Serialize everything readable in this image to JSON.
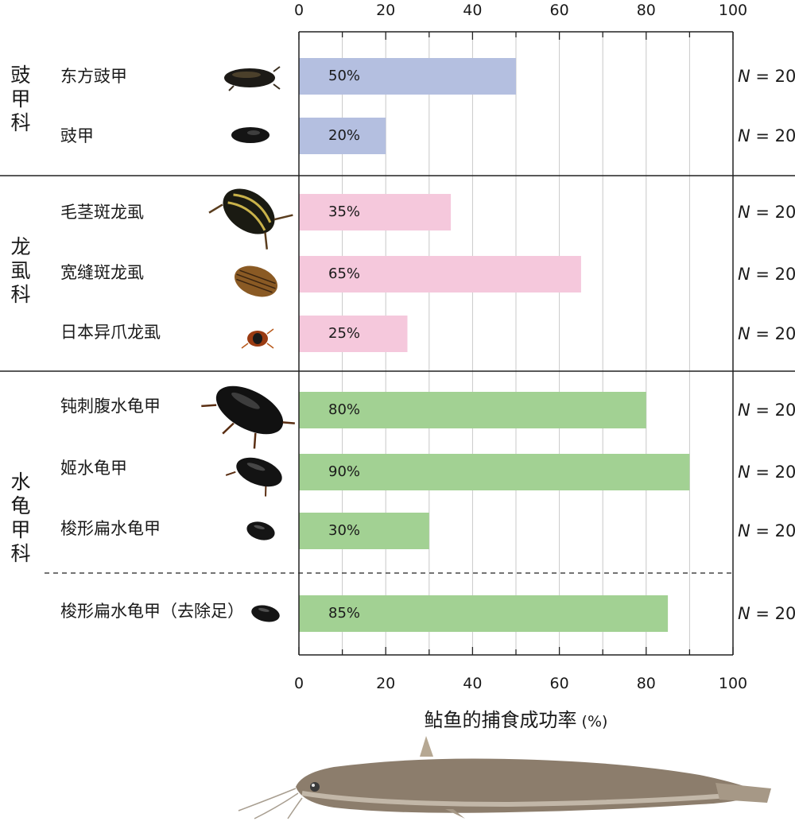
{
  "chart_data": {
    "type": "bar",
    "orientation": "horizontal",
    "xlabel": "鲇鱼的捕食成功率",
    "xlabel_unit": "(%)",
    "xlim": [
      0,
      100
    ],
    "x_ticks": [
      "0",
      "20",
      "40",
      "60",
      "80",
      "100"
    ],
    "grid": true,
    "families": [
      {
        "name": "豉甲科",
        "color": "#b4bfe0"
      },
      {
        "name": "龙虱科",
        "color": "#f5c8dc"
      },
      {
        "name": "水龟甲科",
        "color": "#a2d193"
      }
    ],
    "bars": [
      {
        "species": "东方豉甲",
        "family": "豉甲科",
        "value": 50,
        "label": "50%",
        "n_prefix": "N",
        "n_suffix": " = 20"
      },
      {
        "species": "豉甲",
        "family": "豉甲科",
        "value": 20,
        "label": "20%",
        "n_prefix": "N",
        "n_suffix": " = 20"
      },
      {
        "species": "毛茎斑龙虱",
        "family": "龙虱科",
        "value": 35,
        "label": "35%",
        "n_prefix": "N",
        "n_suffix": " = 20"
      },
      {
        "species": "宽缝斑龙虱",
        "family": "龙虱科",
        "value": 65,
        "label": "65%",
        "n_prefix": "N",
        "n_suffix": " = 20"
      },
      {
        "species": "日本异爪龙虱",
        "family": "龙虱科",
        "value": 25,
        "label": "25%",
        "n_prefix": "N",
        "n_suffix": " = 20"
      },
      {
        "species": "钝刺腹水龟甲",
        "family": "水龟甲科",
        "value": 80,
        "label": "80%",
        "n_prefix": "N",
        "n_suffix": " = 20"
      },
      {
        "species": "姬水龟甲",
        "family": "水龟甲科",
        "value": 90,
        "label": "90%",
        "n_prefix": "N",
        "n_suffix": " = 20"
      },
      {
        "species": "梭形扁水龟甲",
        "family": "水龟甲科",
        "value": 30,
        "label": "30%",
        "n_prefix": "N",
        "n_suffix": " = 20"
      },
      {
        "species": "梭形扁水龟甲（去除足）",
        "family": "水龟甲科",
        "value": 85,
        "label": "85%",
        "n_prefix": "N",
        "n_suffix": " = 20"
      }
    ]
  }
}
